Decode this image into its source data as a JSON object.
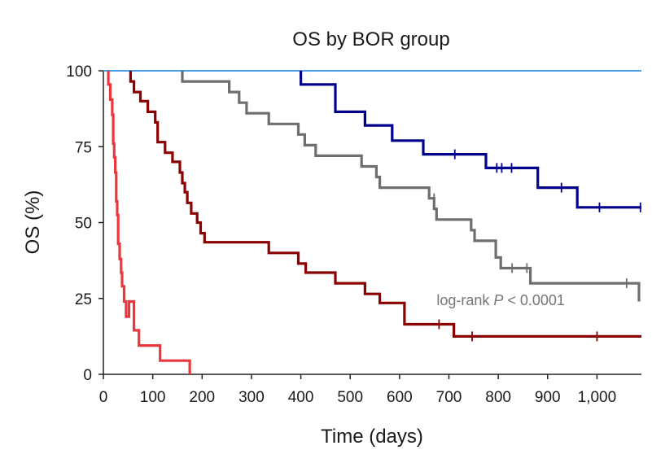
{
  "chart_data": {
    "type": "line",
    "subtype": "kaplan-meier step curves",
    "title": "OS by BOR group",
    "xlabel": "Time (days)",
    "ylabel": "OS (%)",
    "xlim": [
      0,
      1090
    ],
    "ylim": [
      0,
      100
    ],
    "xticks": [
      0,
      100,
      200,
      300,
      400,
      500,
      600,
      700,
      800,
      900,
      1000
    ],
    "xtick_labels": [
      "0",
      "100",
      "200",
      "300",
      "400",
      "500",
      "600",
      "700",
      "800",
      "900",
      "1,000"
    ],
    "yticks": [
      0,
      25,
      50,
      75,
      100
    ],
    "ytick_labels": [
      "0",
      "25",
      "50",
      "75",
      "100"
    ],
    "grid": false,
    "legend": null,
    "annotation": {
      "prefix": "log-rank ",
      "italic": "P",
      "suffix": " < 0.0001",
      "x": 675,
      "y": 25
    },
    "series": [
      {
        "name": "light-blue",
        "color": "#4a9ee8",
        "x": [
          0,
          1090
        ],
        "y": [
          100,
          100
        ],
        "censor_x": [],
        "censor_y": []
      },
      {
        "name": "navy",
        "color": "#00008b",
        "x": [
          400,
          400,
          470,
          470,
          530,
          530,
          585,
          585,
          648,
          648,
          775,
          775,
          880,
          880,
          960,
          960,
          1090
        ],
        "y": [
          100,
          95.5,
          95.5,
          86.5,
          86.5,
          82,
          82,
          77,
          77,
          72.5,
          72.5,
          68,
          68,
          61.5,
          61.5,
          55,
          55
        ],
        "censor_x": [
          712,
          797,
          807,
          827,
          928,
          1005,
          1088
        ],
        "censor_y": [
          72.5,
          68,
          68,
          68,
          61.5,
          55,
          55
        ]
      },
      {
        "name": "gray",
        "color": "#6e6e6e",
        "x": [
          160,
          160,
          255,
          255,
          275,
          275,
          290,
          290,
          335,
          335,
          395,
          395,
          408,
          408,
          430,
          430,
          523,
          523,
          553,
          553,
          560,
          560,
          660,
          660,
          670,
          670,
          675,
          675,
          745,
          745,
          752,
          752,
          795,
          795,
          805,
          805,
          865,
          865,
          1085,
          1085
        ],
        "y": [
          100,
          96.5,
          96.5,
          93,
          93,
          89.5,
          89.5,
          86,
          86,
          82.5,
          82.5,
          79,
          79,
          75.5,
          75.5,
          72,
          72,
          68.5,
          68.5,
          65,
          65,
          61.5,
          61.5,
          58,
          58,
          54.5,
          54.5,
          51,
          51,
          47.5,
          47.5,
          44,
          44,
          38.5,
          38.5,
          35,
          35,
          30,
          30,
          24
        ],
        "censor_x": [
          670,
          828,
          858,
          1060
        ],
        "censor_y": [
          58,
          35,
          35,
          30
        ]
      },
      {
        "name": "dark-red",
        "color": "#8b0000",
        "x": [
          55,
          55,
          62,
          62,
          75,
          75,
          90,
          90,
          105,
          105,
          110,
          110,
          125,
          125,
          140,
          140,
          155,
          155,
          160,
          160,
          165,
          165,
          170,
          170,
          178,
          178,
          190,
          190,
          197,
          197,
          205,
          205,
          335,
          335,
          395,
          395,
          410,
          410,
          470,
          470,
          530,
          530,
          560,
          560,
          610,
          610,
          710,
          710,
          1090
        ],
        "y": [
          100,
          96.5,
          96.5,
          93,
          93,
          90,
          90,
          86.5,
          86.5,
          83,
          83,
          76.5,
          76.5,
          73,
          73,
          70,
          70,
          66.5,
          66.5,
          63,
          63,
          60,
          60,
          56.5,
          56.5,
          53,
          53,
          50,
          50,
          46.5,
          46.5,
          43.5,
          43.5,
          40,
          40,
          36.5,
          36.5,
          33.5,
          33.5,
          30,
          30,
          26.5,
          26.5,
          23.5,
          23.5,
          16.5,
          16.5,
          12.5,
          12.5
        ],
        "censor_x": [
          680,
          747,
          1000
        ],
        "censor_y": [
          16.5,
          12.5,
          12.5
        ]
      },
      {
        "name": "red",
        "color": "#e8383d",
        "x": [
          10,
          10,
          14,
          14,
          18,
          18,
          20,
          20,
          22,
          22,
          24,
          24,
          26,
          26,
          28,
          28,
          30,
          30,
          33,
          33,
          36,
          36,
          38,
          38,
          42,
          42,
          46,
          46,
          52,
          52,
          62,
          62,
          72,
          72,
          78,
          78,
          115,
          115,
          175,
          175
        ],
        "y": [
          100,
          95.5,
          95.5,
          90.5,
          90.5,
          85.5,
          85.5,
          76,
          76,
          71.5,
          71.5,
          66.5,
          66.5,
          57,
          57,
          52.5,
          52.5,
          43,
          43,
          38,
          38,
          33.5,
          33.5,
          29,
          29,
          24,
          24,
          19,
          19,
          24,
          24,
          14.5,
          14.5,
          9.5,
          9.5,
          9.5,
          9.5,
          4.5,
          4.5,
          0
        ],
        "censor_x": [],
        "censor_y": []
      }
    ]
  }
}
